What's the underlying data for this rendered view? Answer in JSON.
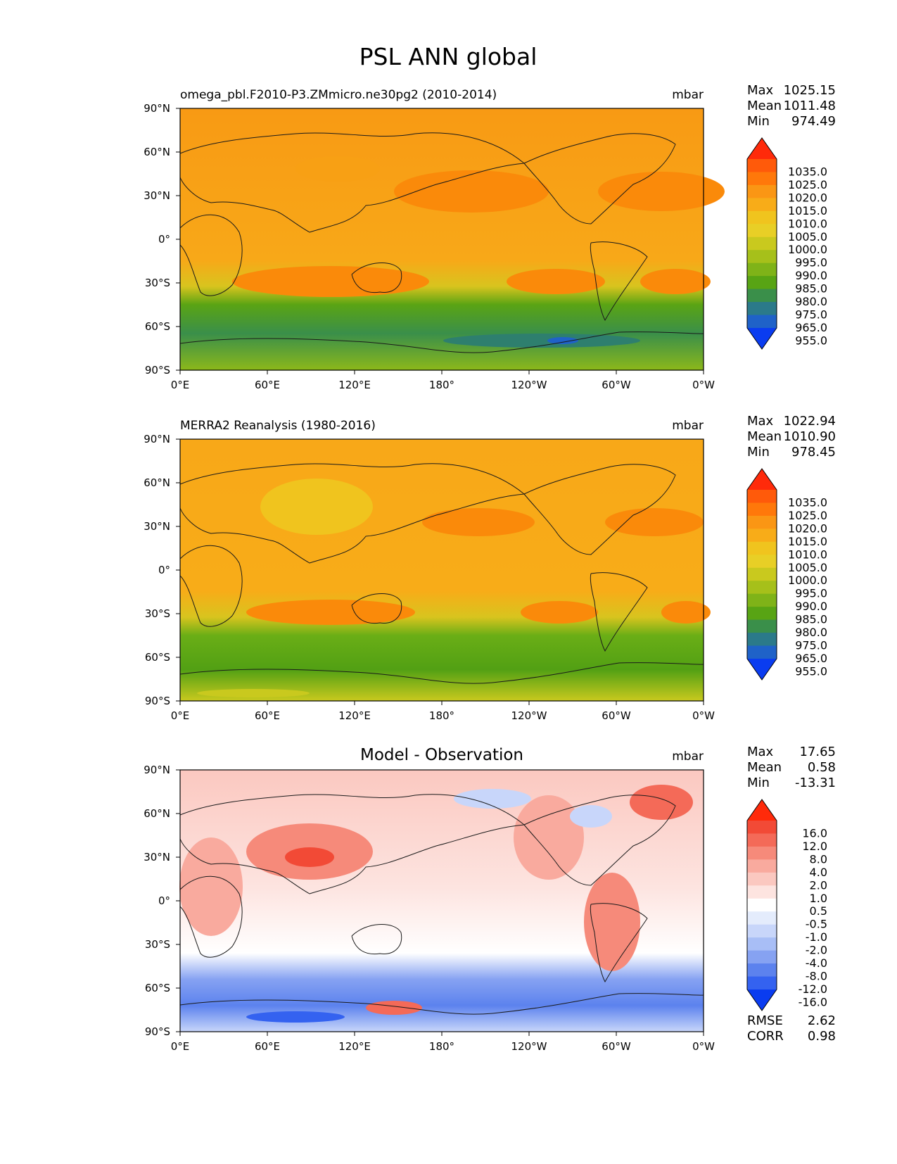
{
  "figure_title": "PSL ANN global",
  "x_ticks": [
    "0°E",
    "60°E",
    "120°E",
    "180°",
    "120°W",
    "60°W",
    "0°W"
  ],
  "y_ticks": [
    "90°N",
    "60°N",
    "30°N",
    "0°",
    "30°S",
    "60°S",
    "90°S"
  ],
  "abs_levels": [
    "1035.0",
    "1025.0",
    "1020.0",
    "1015.0",
    "1010.0",
    "1005.0",
    "1000.0",
    "995.0",
    "990.0",
    "985.0",
    "980.0",
    "975.0",
    "965.0",
    "955.0"
  ],
  "abs_colors": [
    "#ff2a0a",
    "#ff5a0a",
    "#ff780a",
    "#fa9614",
    "#f8ac18",
    "#f0c41e",
    "#e8cf26",
    "#c9c91e",
    "#a6c01a",
    "#7fb318",
    "#58a414",
    "#3a8f4a",
    "#2b7a8a",
    "#1f62c8",
    "#0a3cf0"
  ],
  "diff_levels": [
    "16.0",
    "12.0",
    "8.0",
    "4.0",
    "2.0",
    "1.0",
    "0.5",
    "-0.5",
    "-1.0",
    "-2.0",
    "-4.0",
    "-8.0",
    "-12.0",
    "-16.0"
  ],
  "diff_colors": [
    "#ff2a0a",
    "#f24a36",
    "#f46a58",
    "#f68a7a",
    "#f9aa9e",
    "#fbc8c0",
    "#fde4e0",
    "#ffffff",
    "#e4ecfc",
    "#c8d6fa",
    "#a8bef6",
    "#86a2f2",
    "#5c82ee",
    "#3462f0",
    "#0a3cf0"
  ],
  "panels": [
    {
      "title": "omega_pbl.F2010-P3.ZMmicro.ne30pg2 (2010-2014)",
      "units": "mbar",
      "stats": [
        {
          "label": "Max",
          "value": "1025.15"
        },
        {
          "label": "Mean",
          "value": "1011.48"
        },
        {
          "label": "Min",
          "value": "974.49"
        }
      ]
    },
    {
      "title": "MERRA2 Reanalysis (1980-2016)",
      "units": "mbar",
      "stats": [
        {
          "label": "Max",
          "value": "1022.94"
        },
        {
          "label": "Mean",
          "value": "1010.90"
        },
        {
          "label": "Min",
          "value": "978.45"
        }
      ]
    },
    {
      "title": "Model - Observation",
      "units": "mbar",
      "stats": [
        {
          "label": "Max",
          "value": "17.65"
        },
        {
          "label": "Mean",
          "value": "0.58"
        },
        {
          "label": "Min",
          "value": "-13.31"
        }
      ],
      "metrics": [
        {
          "label": "RMSE",
          "value": "2.62"
        },
        {
          "label": "CORR",
          "value": "0.98"
        }
      ]
    }
  ]
}
